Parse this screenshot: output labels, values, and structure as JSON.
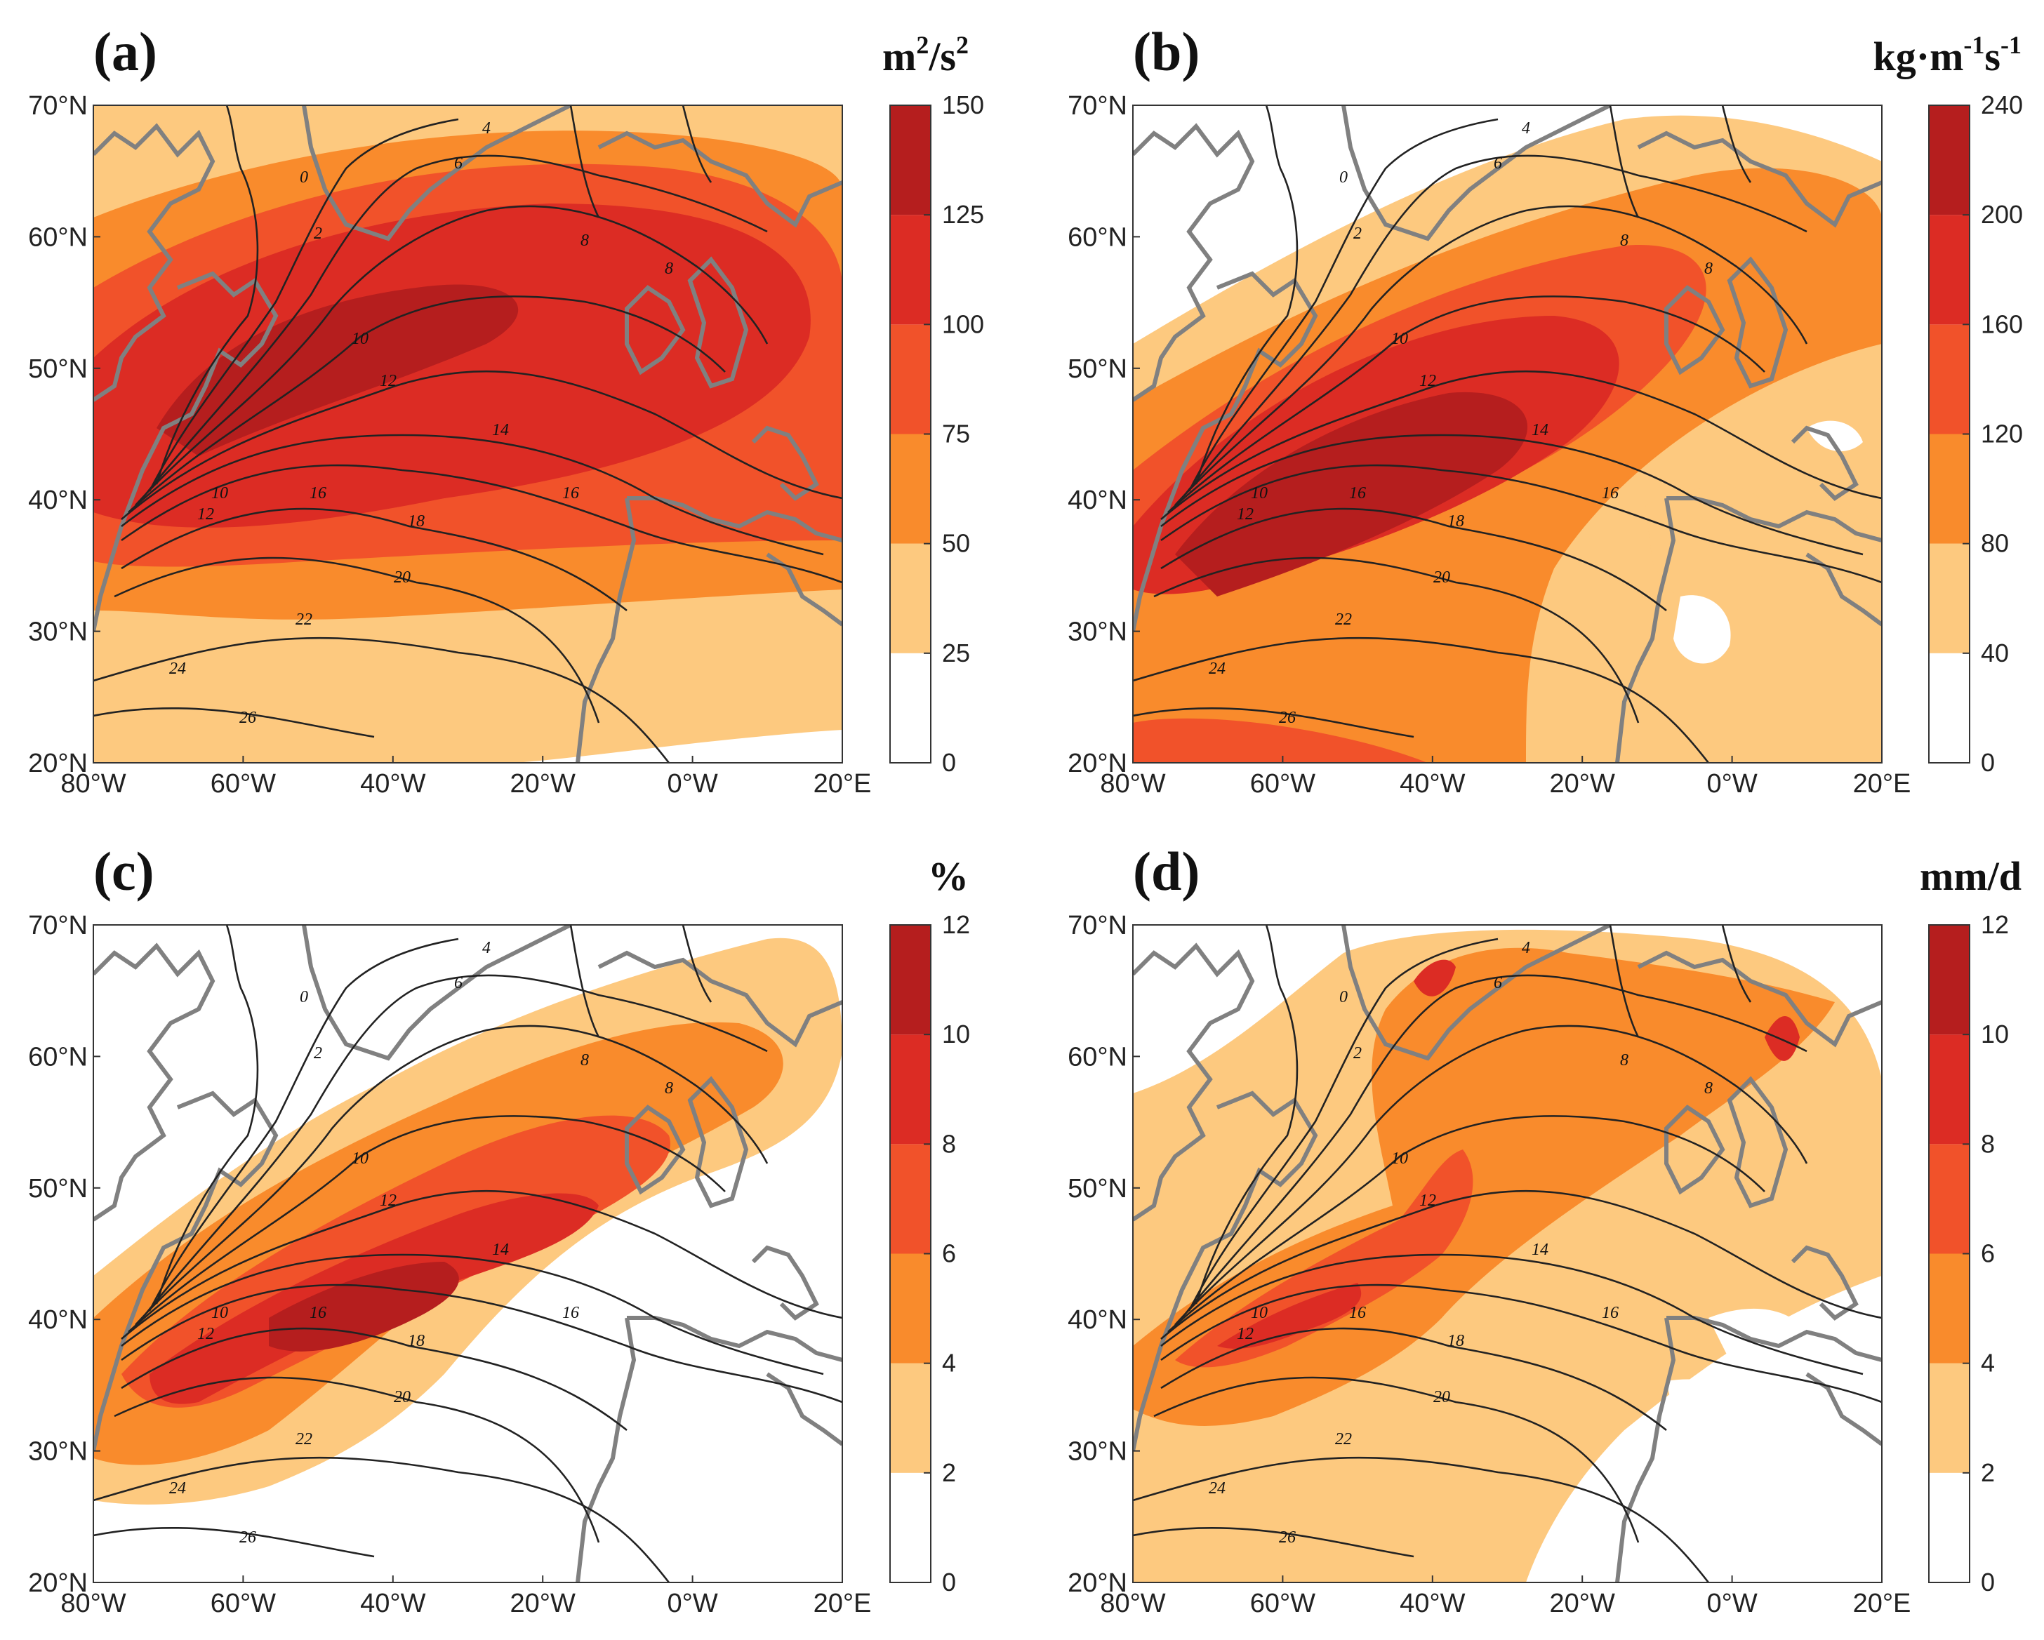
{
  "figure": {
    "panels": [
      {
        "id": "a",
        "label": "(a)",
        "unit": "m²/s²",
        "unit_base": "m",
        "unit_rest": "/s",
        "sup1": "2",
        "sup2": "2",
        "colorbar": [
          "0",
          "25",
          "50",
          "75",
          "100",
          "125",
          "150"
        ],
        "colors": [
          "#ffffff",
          "#fdc97f",
          "#f98b2c",
          "#f1522a",
          "#dc2c24",
          "#b51e1e"
        ]
      },
      {
        "id": "b",
        "label": "(b)",
        "unit": "kg·m⁻¹s⁻¹",
        "unit_base": "kg·m",
        "unit_rest": "s",
        "sup1": "-1",
        "sup2": "-1",
        "colorbar": [
          "0",
          "40",
          "80",
          "120",
          "160",
          "200",
          "240"
        ],
        "colors": [
          "#ffffff",
          "#fdc97f",
          "#f98b2c",
          "#f1522a",
          "#dc2c24",
          "#b51e1e"
        ]
      },
      {
        "id": "c",
        "label": "(c)",
        "unit": "%",
        "unit_base": "%",
        "unit_rest": "",
        "sup1": "",
        "sup2": "",
        "colorbar": [
          "0",
          "2",
          "4",
          "6",
          "8",
          "10",
          "12"
        ],
        "colors": [
          "#ffffff",
          "#fdc97f",
          "#f98b2c",
          "#f1522a",
          "#dc2c24",
          "#b51e1e"
        ]
      },
      {
        "id": "d",
        "label": "(d)",
        "unit": "mm/d",
        "unit_base": "mm/d",
        "unit_rest": "",
        "sup1": "",
        "sup2": "",
        "colorbar": [
          "0",
          "2",
          "4",
          "6",
          "8",
          "10",
          "12"
        ],
        "colors": [
          "#ffffff",
          "#fdc97f",
          "#f98b2c",
          "#f1522a",
          "#dc2c24",
          "#b51e1e"
        ]
      }
    ],
    "lat_ticks": [
      "70°N",
      "60°N",
      "50°N",
      "40°N",
      "30°N",
      "20°N"
    ],
    "lon_ticks": [
      "80°W",
      "60°W",
      "40°W",
      "20°W",
      "0°W",
      "20°E"
    ],
    "contour_labels": [
      "0",
      "2",
      "4",
      "6",
      "8",
      "10",
      "12",
      "14",
      "16",
      "18",
      "20",
      "22",
      "24",
      "26"
    ],
    "colors": {
      "coast": "#808080",
      "contour": "#222222"
    }
  }
}
